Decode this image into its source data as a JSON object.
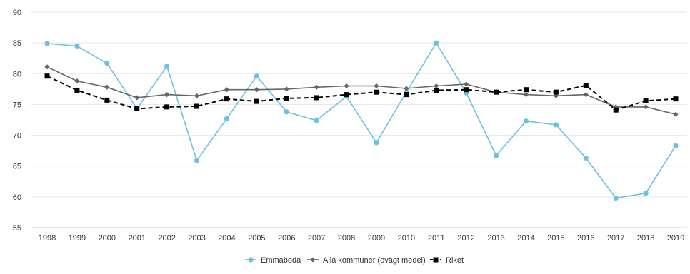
{
  "chart_data": {
    "type": "line",
    "x": [
      "1998",
      "1999",
      "2000",
      "2001",
      "2002",
      "2003",
      "2004",
      "2005",
      "2006",
      "2007",
      "2008",
      "2009",
      "2010",
      "2011",
      "2012",
      "2013",
      "2014",
      "2015",
      "2016",
      "2017",
      "2018",
      "2019"
    ],
    "ylim": [
      55,
      90
    ],
    "yticks": [
      55,
      60,
      65,
      70,
      75,
      80,
      85,
      90
    ],
    "grid": true,
    "legend_position": "bottom-center",
    "title": "",
    "xlabel": "",
    "ylabel": "",
    "series": [
      {
        "name": "Emmaboda",
        "color": "#6cc1e0",
        "line_style": "solid",
        "marker": "circle",
        "values": [
          84.9,
          84.5,
          81.7,
          74.3,
          81.2,
          65.9,
          72.7,
          79.6,
          73.8,
          72.4,
          76.3,
          68.8,
          77.0,
          85.0,
          76.9,
          66.7,
          72.3,
          71.7,
          66.3,
          59.8,
          60.6,
          68.3
        ]
      },
      {
        "name": "Alla kommuner (ovägt medel)",
        "color": "#666666",
        "line_style": "solid",
        "marker": "diamond",
        "values": [
          81.1,
          78.8,
          77.8,
          76.1,
          76.6,
          76.4,
          77.4,
          77.4,
          77.5,
          77.8,
          78.0,
          78.0,
          77.6,
          78.0,
          78.3,
          77.0,
          76.6,
          76.4,
          76.6,
          74.6,
          74.6,
          73.4
        ]
      },
      {
        "name": "Riket",
        "color": "#000000",
        "line_style": "dashed",
        "marker": "square",
        "values": [
          79.6,
          77.3,
          75.7,
          74.3,
          74.6,
          74.7,
          75.9,
          75.5,
          76.0,
          76.1,
          76.6,
          77.0,
          76.6,
          77.3,
          77.4,
          77.0,
          77.4,
          77.0,
          78.1,
          74.1,
          75.6,
          75.9
        ]
      }
    ]
  }
}
